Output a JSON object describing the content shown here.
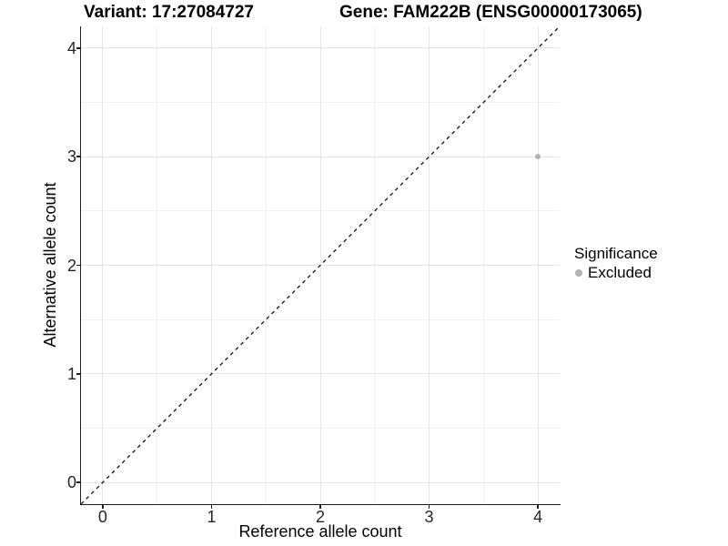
{
  "header": {
    "title_left": "Variant: 17:27084727",
    "title_right": "Gene: FAM222B (ENSG00000173065)"
  },
  "chart_data": {
    "type": "scatter",
    "xlabel": "Reference allele count",
    "ylabel": "Alternative allele count",
    "xlim": [
      -0.2,
      4.2
    ],
    "ylim": [
      -0.2,
      4.2
    ],
    "xticks": [
      0,
      1,
      2,
      3,
      4
    ],
    "yticks": [
      0,
      1,
      2,
      3,
      4
    ],
    "xticks_minor": [
      0.5,
      1.5,
      2.5,
      3.5
    ],
    "yticks_minor": [
      0.5,
      1.5,
      2.5,
      3.5
    ],
    "grid": "on",
    "series": [
      {
        "name": "Excluded",
        "color": "#b3b3b3",
        "points": [
          {
            "x": 4,
            "y": 3
          }
        ]
      }
    ],
    "identity_line": {
      "slope": 1,
      "intercept": 0,
      "style": "dashed",
      "color": "#111111"
    },
    "legend": {
      "position": "right",
      "title": "Significance",
      "entries": [
        {
          "label": "Excluded",
          "color": "#b3b3b3"
        }
      ]
    }
  },
  "colors": {
    "background": "#ffffff",
    "grid_major": "#e4e4e4",
    "grid_minor": "#f1f1f1",
    "axis_line": "#1f1f1f",
    "tick_text": "#262626",
    "point": "#b3b3b3"
  }
}
